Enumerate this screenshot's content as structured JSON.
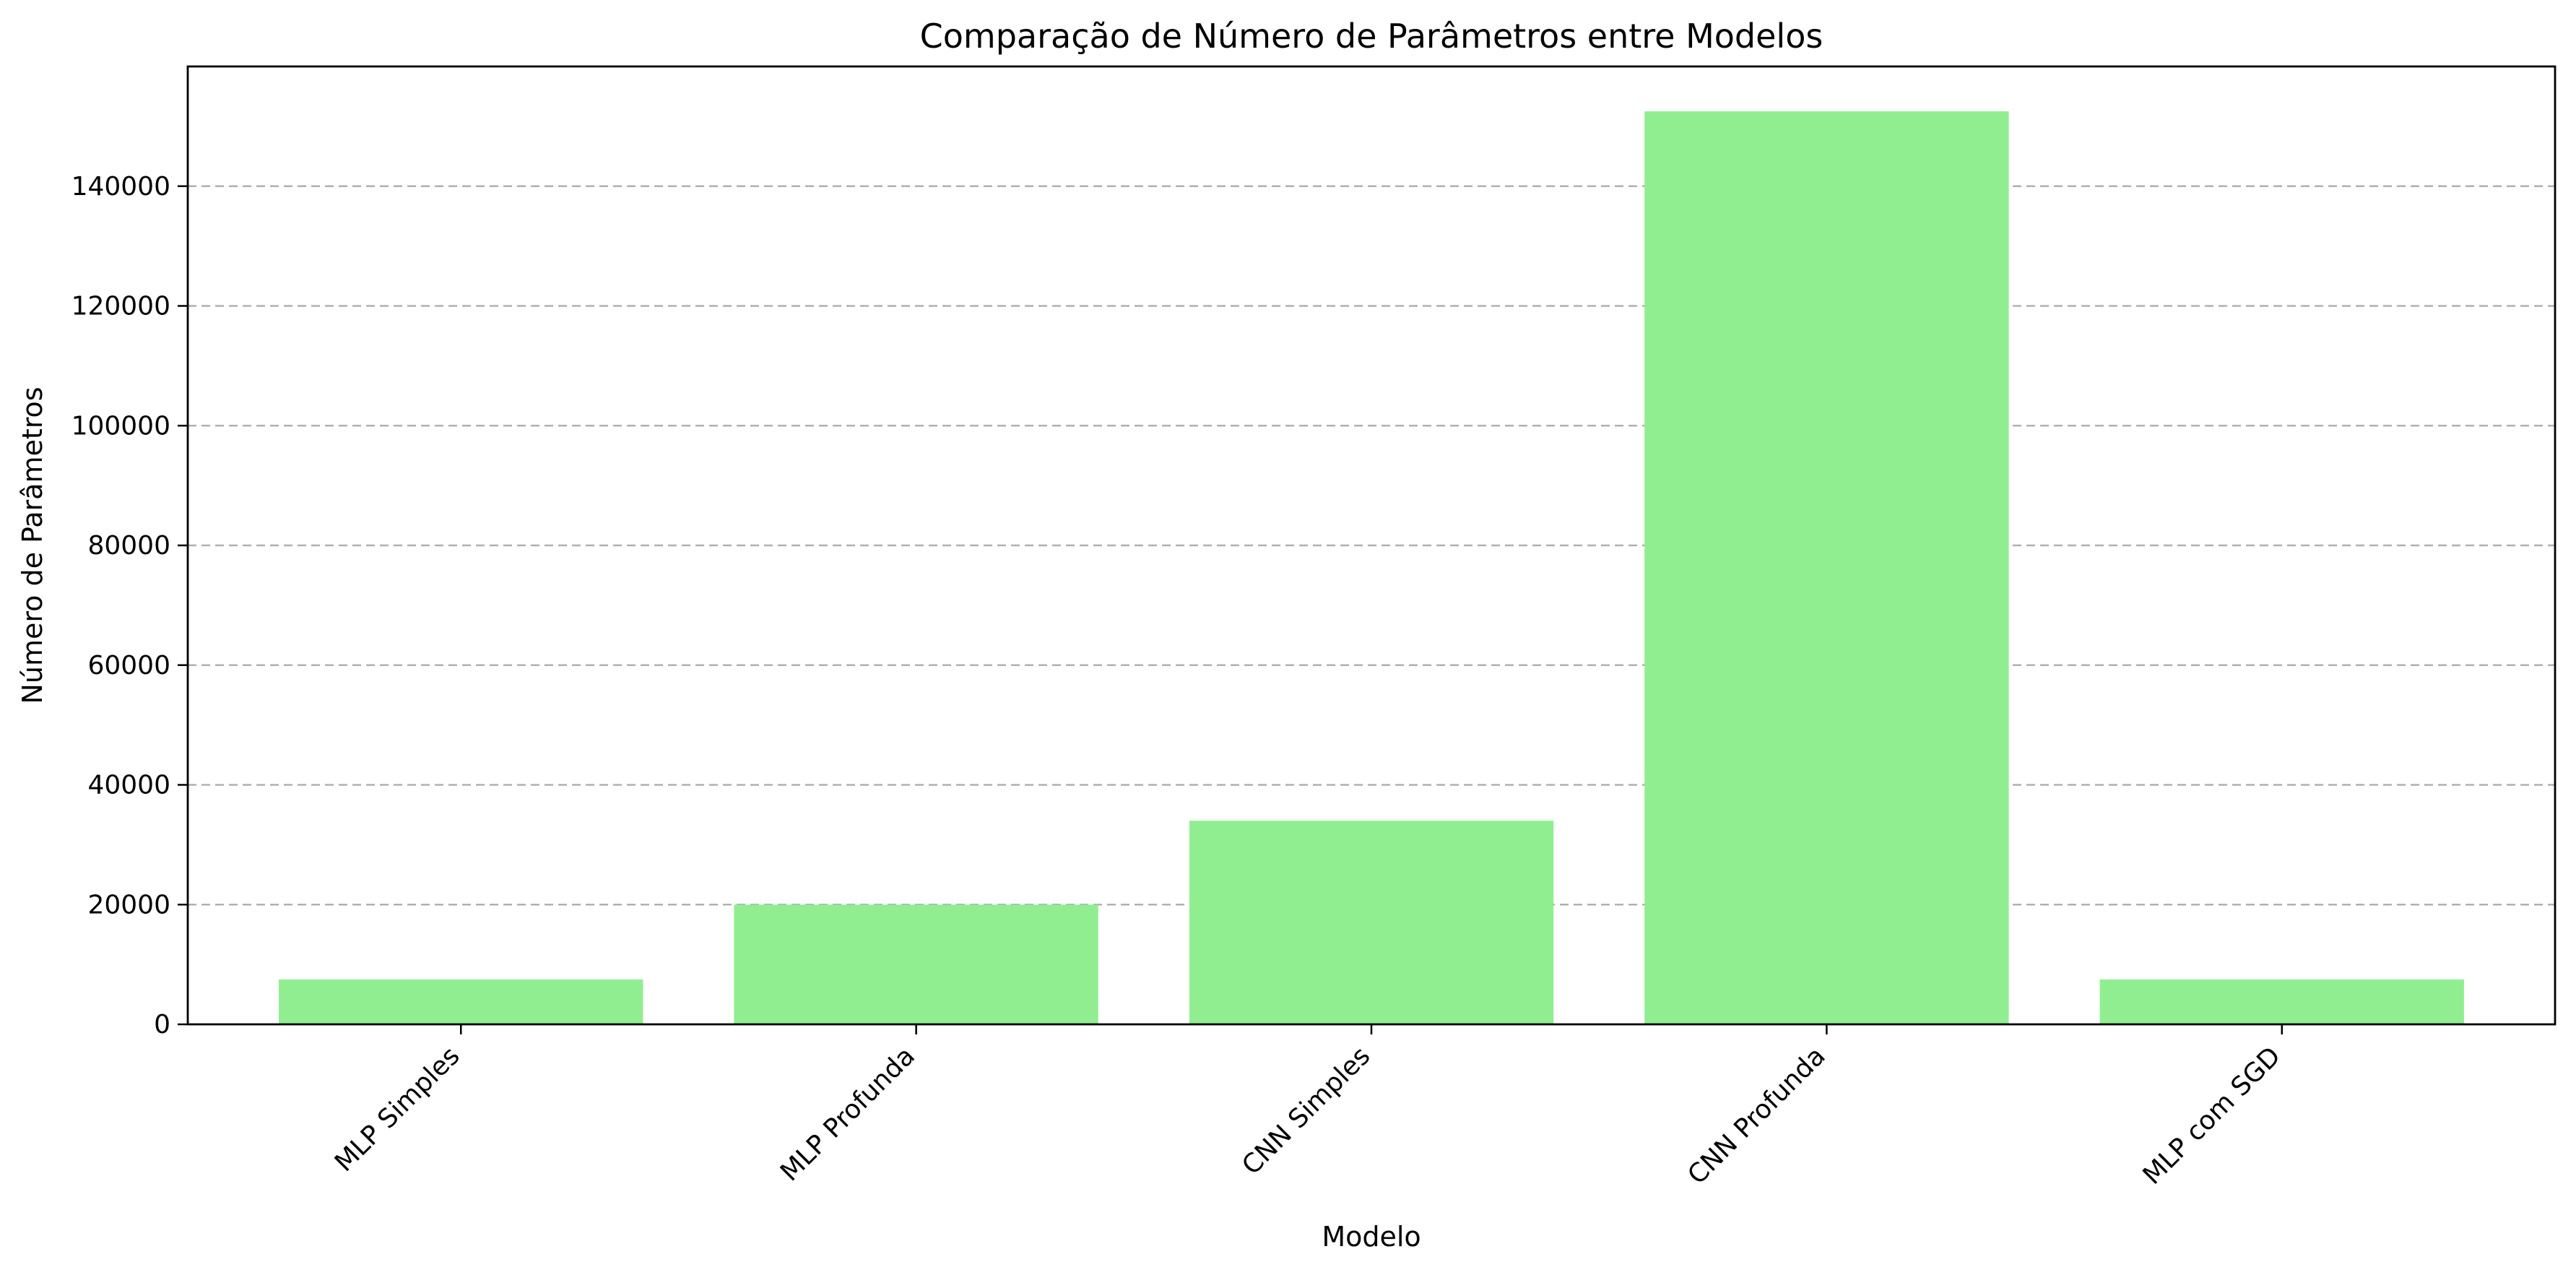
{
  "chart_data": {
    "type": "bar",
    "title": "Comparação de Número de Parâmetros entre Modelos",
    "xlabel": "Modelo",
    "ylabel": "Número de Parâmetros",
    "categories": [
      "MLP Simples",
      "MLP Profunda",
      "CNN Simples",
      "CNN Profunda",
      "MLP com SGD"
    ],
    "values": [
      7500,
      20000,
      34000,
      152500,
      7500
    ],
    "ylim": [
      0,
      160000
    ],
    "yticks": [
      0,
      20000,
      40000,
      60000,
      80000,
      100000,
      120000,
      140000
    ],
    "grid": "y-dashed",
    "bar_color": "#90ee90",
    "legend": "none"
  }
}
